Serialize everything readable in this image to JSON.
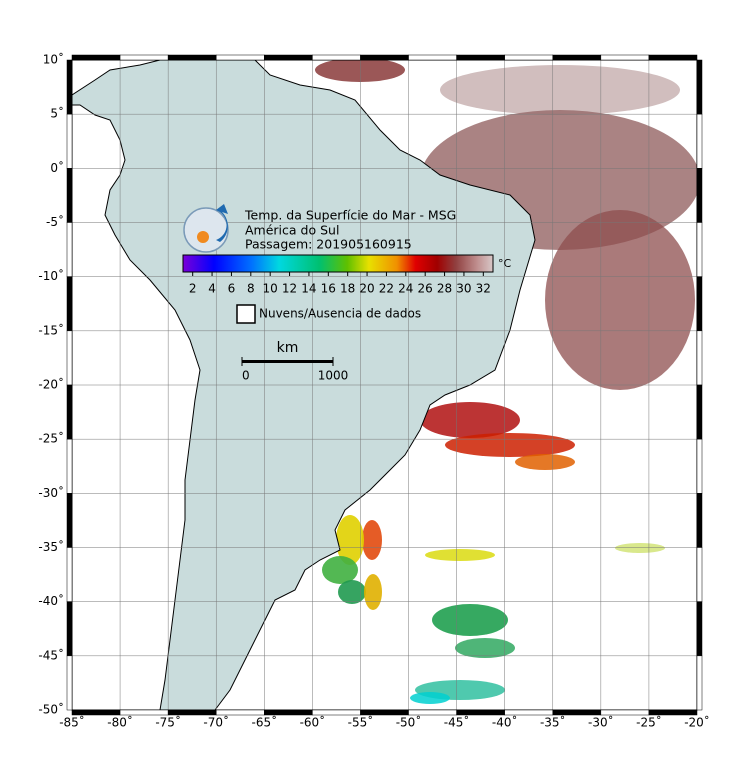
{
  "map": {
    "title_lines": [
      "Temp. da Superfície do Mar - MSG",
      "América do Sul",
      "Passagem: 201905160915"
    ],
    "colorbar": {
      "unit": "°C",
      "lim": [
        1,
        33
      ],
      "ticks": [
        2,
        4,
        6,
        8,
        10,
        12,
        14,
        16,
        18,
        20,
        22,
        24,
        26,
        28,
        30,
        32
      ]
    },
    "legend": "Nuvens/Ausencia de dados",
    "scale": {
      "unit": "km",
      "ticks": [
        0,
        1000
      ]
    },
    "xlim": [
      -85,
      -20
    ],
    "ylim": [
      -50,
      10
    ],
    "lon_ticks": [
      {
        "value": -85,
        "label": "-85˚"
      },
      {
        "value": -80,
        "label": "-80˚"
      },
      {
        "value": -75,
        "label": "-75˚"
      },
      {
        "value": -70,
        "label": "-70˚"
      },
      {
        "value": -65,
        "label": "-65˚"
      },
      {
        "value": -60,
        "label": "-60˚"
      },
      {
        "value": -55,
        "label": "-55˚"
      },
      {
        "value": -50,
        "label": "-50˚"
      },
      {
        "value": -45,
        "label": "-45˚"
      },
      {
        "value": -40,
        "label": "-40˚"
      },
      {
        "value": -35,
        "label": "-35˚"
      },
      {
        "value": -30,
        "label": "-30˚"
      },
      {
        "value": -25,
        "label": "-25˚"
      },
      {
        "value": -20,
        "label": "-20˚"
      }
    ],
    "lat_ticks": [
      {
        "value": 10,
        "label": "10˚"
      },
      {
        "value": 5,
        "label": "5˚"
      },
      {
        "value": 0,
        "label": "0˚"
      },
      {
        "value": -5,
        "label": "-5˚"
      },
      {
        "value": -10,
        "label": "-10˚"
      },
      {
        "value": -15,
        "label": "-15˚"
      },
      {
        "value": -20,
        "label": "-20˚"
      },
      {
        "value": -25,
        "label": "-25˚"
      },
      {
        "value": -30,
        "label": "-30˚"
      },
      {
        "value": -35,
        "label": "-35˚"
      },
      {
        "value": -40,
        "label": "-40˚"
      },
      {
        "value": -45,
        "label": "-45˚"
      },
      {
        "value": -50,
        "label": "-50˚"
      }
    ]
  }
}
